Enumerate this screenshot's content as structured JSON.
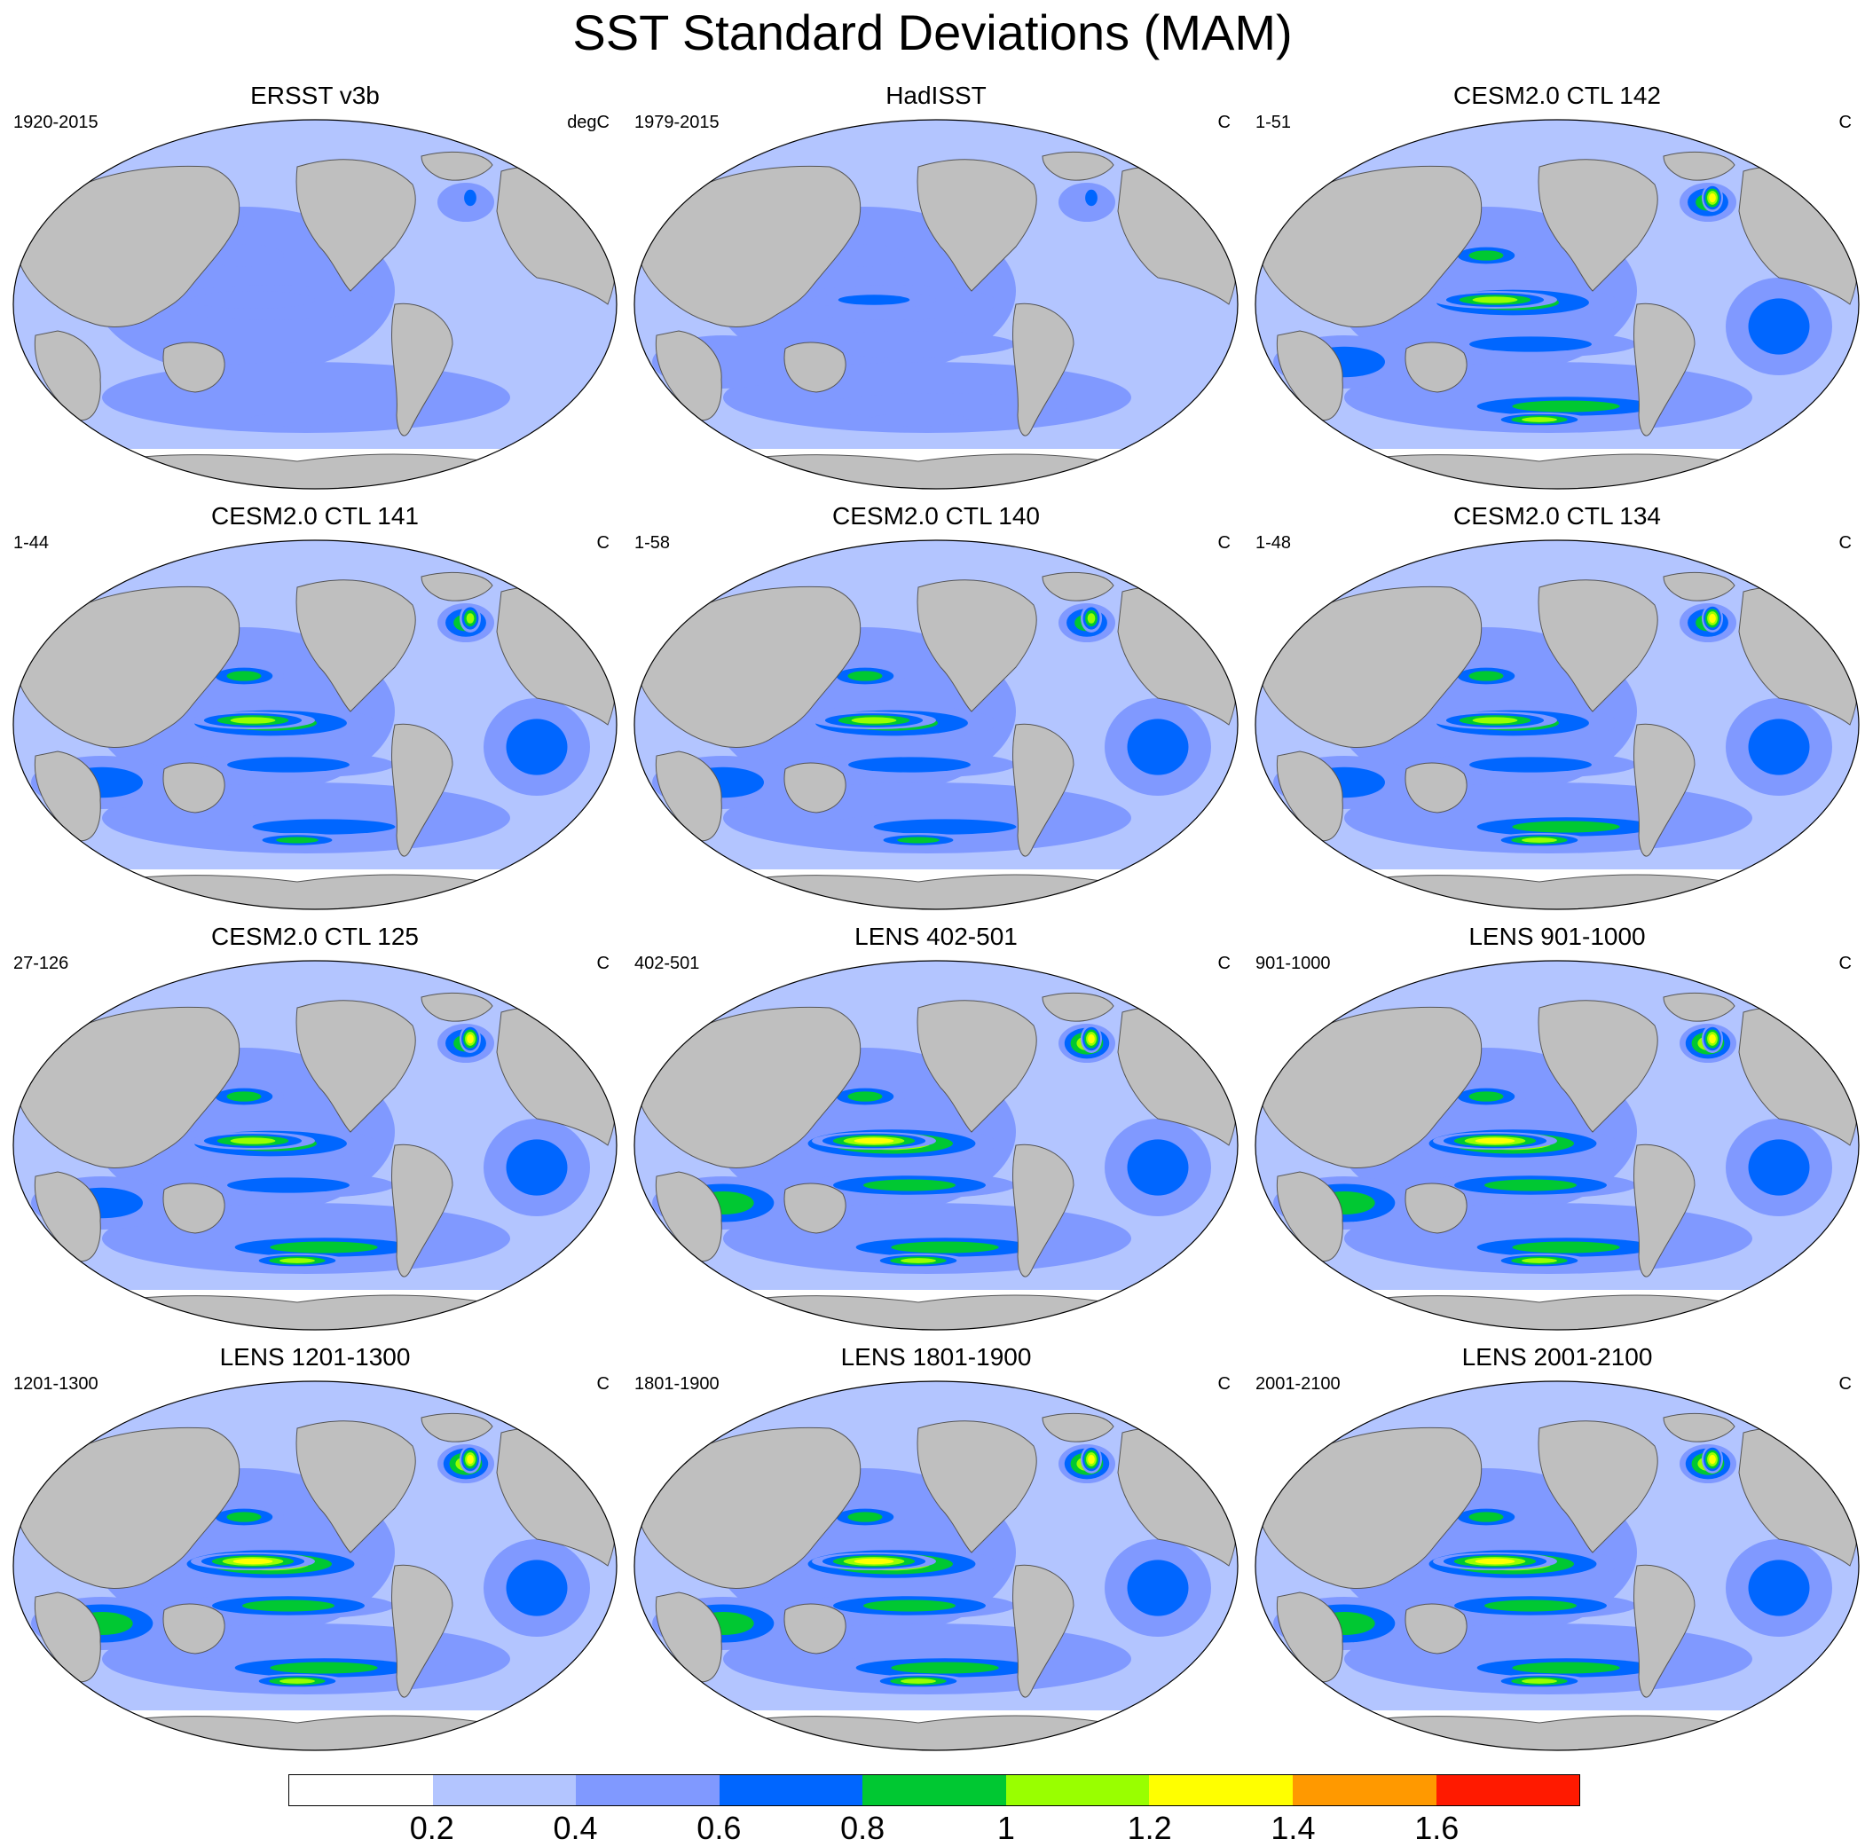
{
  "title": "SST Standard Deviations (MAM)",
  "panels": [
    {
      "title": "ERSST v3b",
      "period": "1920-2015",
      "units": "degC"
    },
    {
      "title": "HadISST",
      "period": "1979-2015",
      "units": "C"
    },
    {
      "title": "CESM2.0 CTL 142",
      "period": "1-51",
      "units": "C"
    },
    {
      "title": "CESM2.0 CTL 141",
      "period": "1-44",
      "units": "C"
    },
    {
      "title": "CESM2.0 CTL 140",
      "period": "1-58",
      "units": "C"
    },
    {
      "title": "CESM2.0 CTL 134",
      "period": "1-48",
      "units": "C"
    },
    {
      "title": "CESM2.0 CTL 125",
      "period": "27-126",
      "units": "C"
    },
    {
      "title": "LENS 402-501",
      "period": "402-501",
      "units": "C"
    },
    {
      "title": "LENS 901-1000",
      "period": "901-1000",
      "units": "C"
    },
    {
      "title": "LENS 1201-1300",
      "period": "1201-1300",
      "units": "C"
    },
    {
      "title": "LENS 1801-1900",
      "period": "1801-1900",
      "units": "C"
    },
    {
      "title": "LENS 2001-2100",
      "period": "2001-2100",
      "units": "C"
    }
  ],
  "colorbar": {
    "colors": [
      "#ffffff",
      "#b3c5ff",
      "#8099ff",
      "#0066ff",
      "#00c832",
      "#99ff00",
      "#ffff00",
      "#ff9900",
      "#ff1a00"
    ],
    "labels": [
      "0.2",
      "0.4",
      "0.6",
      "0.8",
      "1",
      "1.2",
      "1.4",
      "1.6"
    ]
  },
  "colors": {
    "land": "#bfbfbf",
    "coast": "#555555"
  },
  "panel_strength": [
    0.45,
    0.55,
    0.9,
    0.85,
    0.85,
    0.9,
    0.9,
    1.0,
    1.0,
    1.0,
    1.0,
    1.0
  ]
}
